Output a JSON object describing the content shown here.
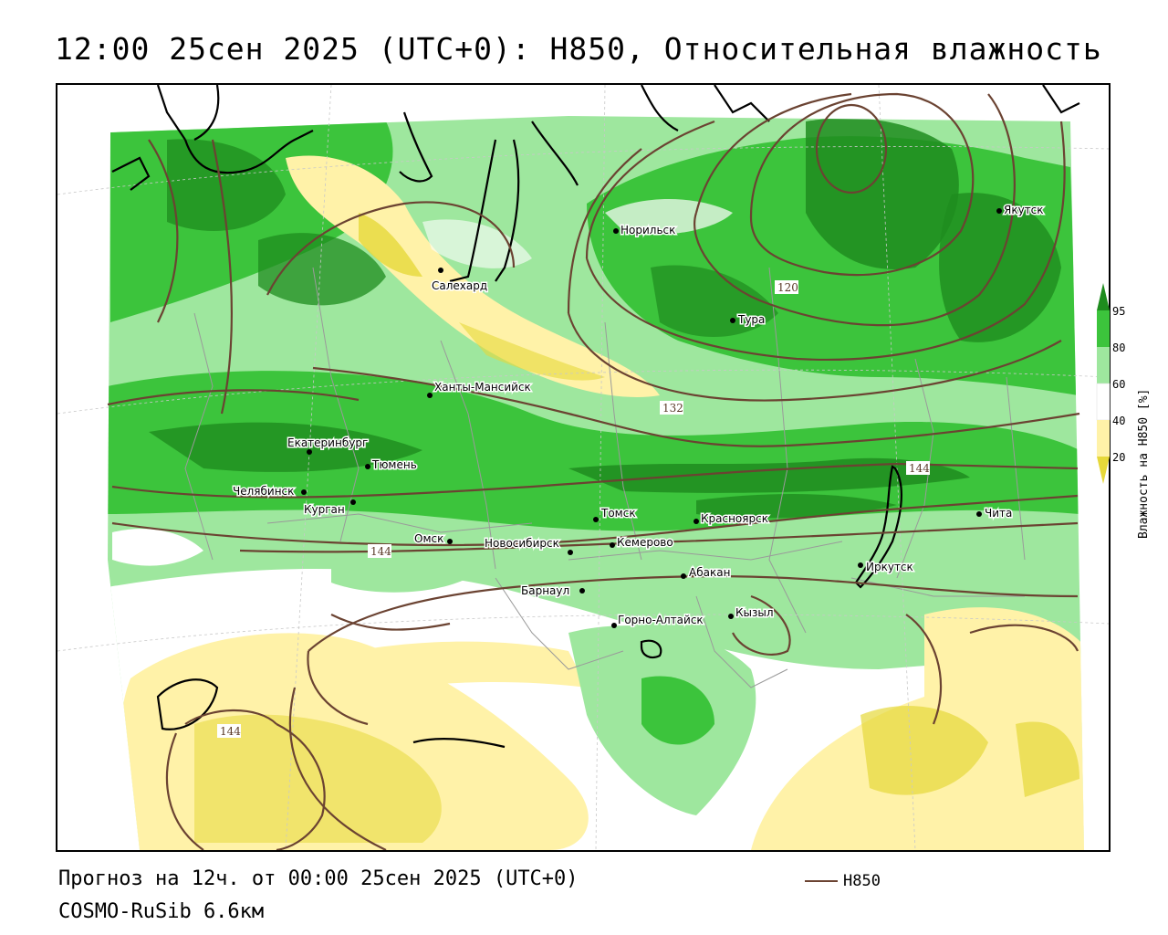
{
  "title": "12:00 25сен 2025 (UTC+0): H850, Относительная влажность",
  "footer": {
    "forecast": "Прогноз на 12ч. от 00:00 25сен 2025 (UTC+0)",
    "model": "COSMO-RuSib 6.6км",
    "series_label": "H850"
  },
  "legend": {
    "title": "Влажность на H850 [%]",
    "ticks": [
      "95",
      "80",
      "60",
      "40",
      "20"
    ],
    "colors": {
      "gt95": "#1e8c1e",
      "80_95": "#3cc43c",
      "60_80": "#9ee79e",
      "40_60": "#ffffff",
      "20_40": "#fff2a8",
      "lt20": "#e6d83a"
    }
  },
  "contour_labels": [
    "120",
    "132",
    "144",
    "144",
    "144"
  ],
  "cities": [
    {
      "name": "Якутск"
    },
    {
      "name": "Норильск"
    },
    {
      "name": "Салехард"
    },
    {
      "name": "Тура"
    },
    {
      "name": "Ханты-Мансийск"
    },
    {
      "name": "Екатеринбург"
    },
    {
      "name": "Тюмень"
    },
    {
      "name": "Челябинск"
    },
    {
      "name": "Курган"
    },
    {
      "name": "Томск"
    },
    {
      "name": "Красноярск"
    },
    {
      "name": "Чита"
    },
    {
      "name": "Омск"
    },
    {
      "name": "Новосибирск"
    },
    {
      "name": "Кемерово"
    },
    {
      "name": "Иркутск"
    },
    {
      "name": "Абакан"
    },
    {
      "name": "Барнаул"
    },
    {
      "name": "Кызыл"
    },
    {
      "name": "Горно-Алтайск"
    }
  ],
  "colors": {
    "contour": "#6b4332",
    "coast": "#000000",
    "borders": "#9a9a9a"
  }
}
